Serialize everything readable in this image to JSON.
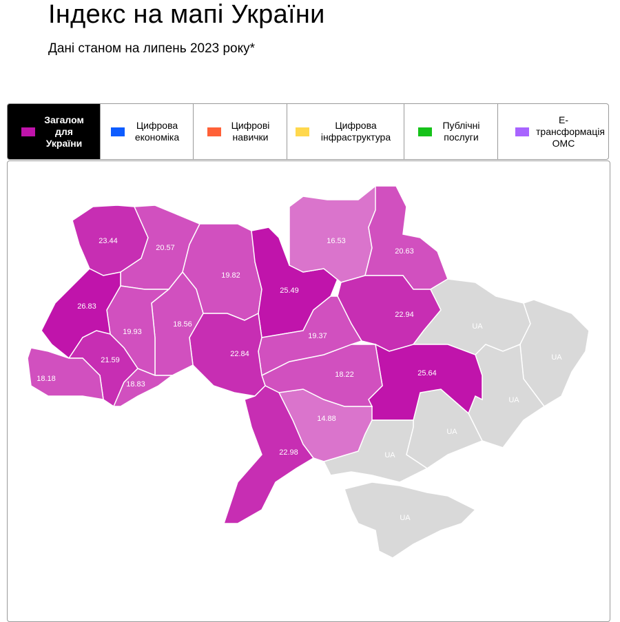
{
  "header": {
    "title": "Індекс на мапі України",
    "subtitle": "Дані станом на липень 2023 року*"
  },
  "tabs": [
    {
      "label": "Загалом для України",
      "color": "#c014ab",
      "active": true
    },
    {
      "label": "Цифрова економіка",
      "color": "#0d5cff",
      "active": false
    },
    {
      "label": "Цифрові навички",
      "color": "#ff6138",
      "active": false
    },
    {
      "label": "Цифрова інфраструктура",
      "color": "#ffd84d",
      "active": false
    },
    {
      "label": "Публічні послуги",
      "color": "#16c21a",
      "active": false
    },
    {
      "label": "Е-трансформація ОМС",
      "color": "#a864ff",
      "active": false
    }
  ],
  "map": {
    "no_data_color": "#d9d9d9",
    "scale_colors": [
      "#da74cc",
      "#d150bf",
      "#c72eb3",
      "#c014ab"
    ],
    "regions": [
      {
        "id": "volyn",
        "value": "23.44"
      },
      {
        "id": "rivne",
        "value": "20.57"
      },
      {
        "id": "zhytomyr",
        "value": "19.82"
      },
      {
        "id": "kyiv",
        "value": "25.49"
      },
      {
        "id": "chernihiv",
        "value": "16.53"
      },
      {
        "id": "sumy",
        "value": "20.63"
      },
      {
        "id": "poltava",
        "value": "22.94"
      },
      {
        "id": "kharkiv",
        "value": "UA"
      },
      {
        "id": "luhansk",
        "value": "UA"
      },
      {
        "id": "donetsk",
        "value": "UA"
      },
      {
        "id": "zaporizhzhia",
        "value": "UA"
      },
      {
        "id": "dnipro",
        "value": "25.64"
      },
      {
        "id": "kherson",
        "value": "UA"
      },
      {
        "id": "crimea",
        "value": "UA"
      },
      {
        "id": "mykolaiv",
        "value": "14.88"
      },
      {
        "id": "kirovohrad",
        "value": "18.22"
      },
      {
        "id": "cherkasy",
        "value": "19.37"
      },
      {
        "id": "vinnytsia",
        "value": "22.84"
      },
      {
        "id": "odesa",
        "value": "22.98"
      },
      {
        "id": "khmelnytskyi",
        "value": "18.56"
      },
      {
        "id": "ternopil",
        "value": "19.93"
      },
      {
        "id": "lviv",
        "value": "26.83"
      },
      {
        "id": "ivano-frankivsk",
        "value": "21.59"
      },
      {
        "id": "zakarpattia",
        "value": "18.18"
      },
      {
        "id": "chernivtsi",
        "value": "18.83"
      }
    ]
  }
}
